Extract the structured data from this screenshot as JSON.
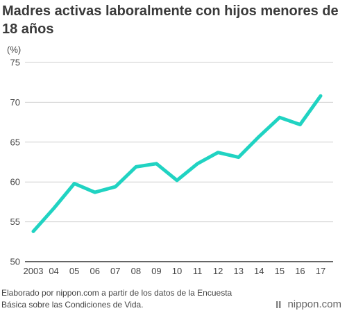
{
  "title": "Madres activas laboralmente con hijos menores de 18 años",
  "source_note": "Elaborado por nippon.com a partir de los datos de la Encuesta Básica sobre las Condiciones de Vida.",
  "brand": "nippon.com",
  "colors": {
    "line": "#20d3c2",
    "grid": "#cfcfcf",
    "axis": "#333333",
    "text": "#444444"
  },
  "chart_data": {
    "type": "line",
    "title": "Madres activas laboralmente con hijos menores de 18 años",
    "unit_label": "(%)",
    "x": [
      "2003",
      "04",
      "05",
      "06",
      "07",
      "08",
      "09",
      "10",
      "11",
      "12",
      "13",
      "14",
      "15",
      "16",
      "17"
    ],
    "values": [
      53.8,
      56.7,
      59.8,
      58.7,
      59.4,
      61.9,
      62.3,
      60.2,
      62.3,
      63.7,
      63.1,
      65.7,
      68.1,
      67.2,
      70.8
    ],
    "ylim": [
      50,
      75
    ],
    "yticks": [
      "75",
      "70",
      "65",
      "60",
      "55",
      "50"
    ],
    "grid": true,
    "legend": "none"
  }
}
